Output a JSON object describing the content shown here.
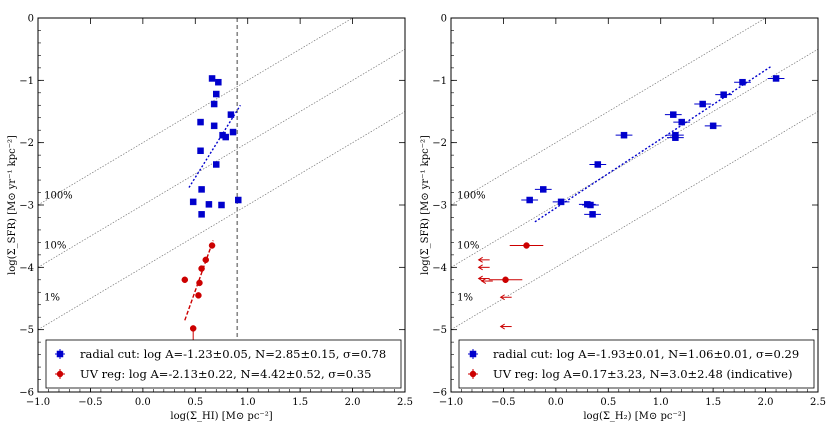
{
  "chart_data": [
    {
      "type": "scatter",
      "panel": "left",
      "xlabel": "log(Σ_HI) [M⊙ pc⁻²]",
      "ylabel": "log(Σ_SFR) [M⊙ yr⁻¹ kpc⁻²]",
      "xlim": [
        -1.0,
        2.5
      ],
      "ylim": [
        -6,
        0
      ],
      "x_ticks": [
        "−1.0",
        "−0.5",
        "0.0",
        "0.5",
        "1.0",
        "1.5",
        "2.0",
        "2.5"
      ],
      "y_ticks": [
        "0",
        "−1",
        "−2",
        "−3",
        "−4",
        "−5",
        "−6"
      ],
      "efficiency_lines": [
        {
          "label": "100%",
          "intercept": -2.0,
          "label_at": [
            -0.98,
            -2.85
          ]
        },
        {
          "label": "10%",
          "intercept": -3.0,
          "label_at": [
            -0.98,
            -3.65
          ]
        },
        {
          "label": "1%",
          "intercept": -4.0,
          "label_at": [
            -0.98,
            -4.48
          ]
        }
      ],
      "threshold_line": {
        "x": 0.9
      },
      "series": [
        {
          "name": "radial cut",
          "color": "#0000cc",
          "marker": "square",
          "points": [
            [
              0.66,
              -0.97
            ],
            [
              0.72,
              -1.03
            ],
            [
              0.7,
              -1.22
            ],
            [
              0.68,
              -1.38
            ],
            [
              0.84,
              -1.55
            ],
            [
              0.55,
              -1.67
            ],
            [
              0.68,
              -1.73
            ],
            [
              0.86,
              -1.83
            ],
            [
              0.76,
              -1.88
            ],
            [
              0.79,
              -1.91
            ],
            [
              0.55,
              -2.13
            ],
            [
              0.7,
              -2.35
            ],
            [
              0.56,
              -2.75
            ],
            [
              0.48,
              -2.95
            ],
            [
              0.63,
              -2.99
            ],
            [
              0.75,
              -3.0
            ],
            [
              0.91,
              -2.92
            ],
            [
              0.56,
              -3.15
            ]
          ],
          "fit": {
            "x": [
              0.44,
              0.93
            ],
            "y": [
              -2.72,
              -1.4
            ]
          }
        },
        {
          "name": "UV reg",
          "color": "#cc0000",
          "marker": "circle",
          "points": [
            [
              0.66,
              -3.65
            ],
            [
              0.6,
              -3.88
            ],
            [
              0.56,
              -4.02
            ],
            [
              0.54,
              -4.25
            ],
            [
              0.4,
              -4.2
            ],
            [
              0.53,
              -4.45
            ],
            [
              0.48,
              -4.98
            ]
          ],
          "upper_limits": [
            [
              0.48,
              -4.98
            ]
          ],
          "fit": {
            "x": [
              0.4,
              0.67
            ],
            "y": [
              -4.85,
              -3.57
            ]
          }
        }
      ],
      "legend": {
        "position": "bottom",
        "entries": [
          {
            "text": "radial cut: log A=-1.23±0.05, N=2.85±0.15, σ=0.78"
          },
          {
            "text": "UV reg: log A=-2.13±0.22, N=4.42±0.52, σ=0.35"
          }
        ]
      }
    },
    {
      "type": "scatter",
      "panel": "right",
      "xlabel": "log(Σ_H₂) [M⊙ pc⁻²]",
      "ylabel": "log(Σ_SFR) [M⊙ yr⁻¹ kpc⁻²]",
      "xlim": [
        -1.0,
        2.5
      ],
      "ylim": [
        -6,
        0
      ],
      "x_ticks": [
        "−1.0",
        "−0.5",
        "0.0",
        "0.5",
        "1.0",
        "1.5",
        "2.0",
        "2.5"
      ],
      "y_ticks": [
        "0",
        "−1",
        "−2",
        "−3",
        "−4",
        "−5",
        "−6"
      ],
      "efficiency_lines": [
        {
          "label": "100%",
          "intercept": -2.0,
          "label_at": [
            -0.98,
            -2.85
          ]
        },
        {
          "label": "10%",
          "intercept": -3.0,
          "label_at": [
            -0.98,
            -3.65
          ]
        },
        {
          "label": "1%",
          "intercept": -4.0,
          "label_at": [
            -0.98,
            -4.48
          ]
        }
      ],
      "series": [
        {
          "name": "radial cut",
          "color": "#0000cc",
          "marker": "square",
          "points": [
            [
              2.1,
              -0.97
            ],
            [
              1.78,
              -1.03
            ],
            [
              1.6,
              -1.23
            ],
            [
              1.4,
              -1.38
            ],
            [
              1.12,
              -1.55
            ],
            [
              1.2,
              -1.67
            ],
            [
              1.5,
              -1.73
            ],
            [
              0.65,
              -1.88
            ],
            [
              1.14,
              -1.88
            ],
            [
              1.14,
              -1.92
            ],
            [
              0.4,
              -2.35
            ],
            [
              -0.12,
              -2.75
            ],
            [
              -0.25,
              -2.92
            ],
            [
              0.05,
              -2.95
            ],
            [
              0.3,
              -2.99
            ],
            [
              0.33,
              -3.0
            ],
            [
              0.35,
              -3.15
            ]
          ],
          "xerr": 0.08,
          "fit": {
            "x": [
              -0.2,
              2.05
            ],
            "y": [
              -3.27,
              -0.78
            ]
          }
        },
        {
          "name": "UV reg",
          "color": "#cc0000",
          "marker": "circle",
          "points": [
            [
              -0.28,
              -3.65
            ],
            [
              -0.48,
              -4.2
            ]
          ],
          "xerr": 0.16,
          "upper_limits": [
            [
              -0.66,
              -3.88
            ],
            [
              -0.66,
              -4.0
            ],
            [
              -0.66,
              -4.18
            ],
            [
              -0.63,
              -4.22
            ],
            [
              -0.45,
              -4.48
            ],
            [
              -0.45,
              -4.95
            ]
          ]
        }
      ],
      "legend": {
        "position": "bottom",
        "entries": [
          {
            "text": "radial cut: log A=-1.93±0.01, N=1.06±0.01, σ=0.29"
          },
          {
            "text": "UV reg: log A=0.17±3.23, N=3.0±2.48 (indicative)"
          }
        ]
      }
    }
  ]
}
